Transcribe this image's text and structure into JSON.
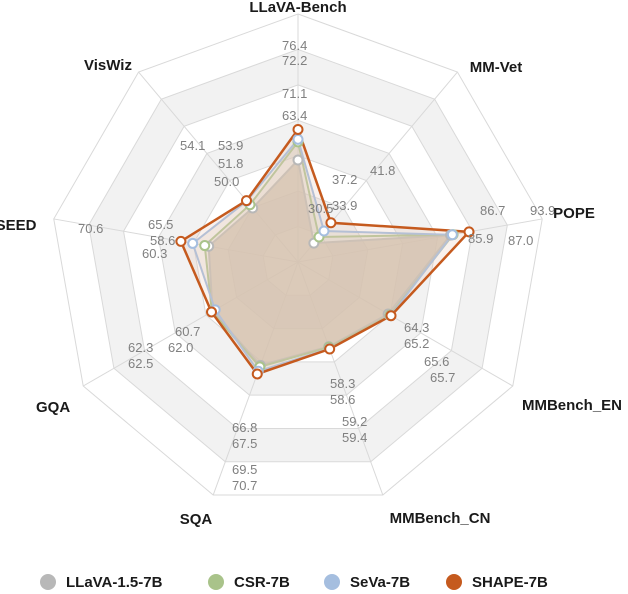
{
  "chart_data": {
    "type": "radar",
    "categories": [
      "LLaVA-Bench",
      "MM-Vet",
      "POPE",
      "MMBench_EN",
      "MMBench_CN",
      "SQA",
      "GQA",
      "SEED",
      "VisWiz"
    ],
    "series": [
      {
        "name": "LLaVA-1.5-7B",
        "color": "#b8b8b8",
        "values": [
          63.4,
          30.5,
          85.9,
          64.3,
          58.3,
          66.8,
          62.0,
          58.6,
          50.0
        ]
      },
      {
        "name": "CSR-7B",
        "color": "#a9c38a",
        "values": [
          71.1,
          33.9,
          87.0,
          65.2,
          58.6,
          67.5,
          62.3,
          60.3,
          51.8
        ]
      },
      {
        "name": "SeVa-7B",
        "color": "#a5bedf",
        "values": [
          72.2,
          37.2,
          86.7,
          65.6,
          59.2,
          69.5,
          60.7,
          65.5,
          53.9
        ]
      },
      {
        "name": "SHAPE-7B",
        "color": "#c55a1e",
        "values": [
          76.4,
          41.8,
          93.9,
          65.7,
          59.4,
          70.7,
          62.5,
          70.6,
          54.1
        ]
      }
    ],
    "value_labels": [
      [
        "76.4",
        "72.2",
        "71.1",
        "63.4"
      ],
      [
        "41.8",
        "37.2",
        "33.9",
        "30.5"
      ],
      [
        "86.7",
        "93.9",
        "85.9",
        "87.0"
      ],
      [
        "64.3",
        "65.2",
        "65.6",
        "65.7"
      ],
      [
        "58.3",
        "58.6",
        "59.2",
        "59.4"
      ],
      [
        "66.8",
        "67.5",
        "69.5",
        "70.7"
      ],
      [
        "60.7",
        "62.3",
        "62.0",
        "62.5"
      ],
      [
        "70.6",
        "65.5",
        "58.6",
        "60.3"
      ],
      [
        "54.1",
        "53.9",
        "51.8",
        "50.0"
      ]
    ],
    "grid_levels": 7,
    "legend_position": "bottom"
  }
}
